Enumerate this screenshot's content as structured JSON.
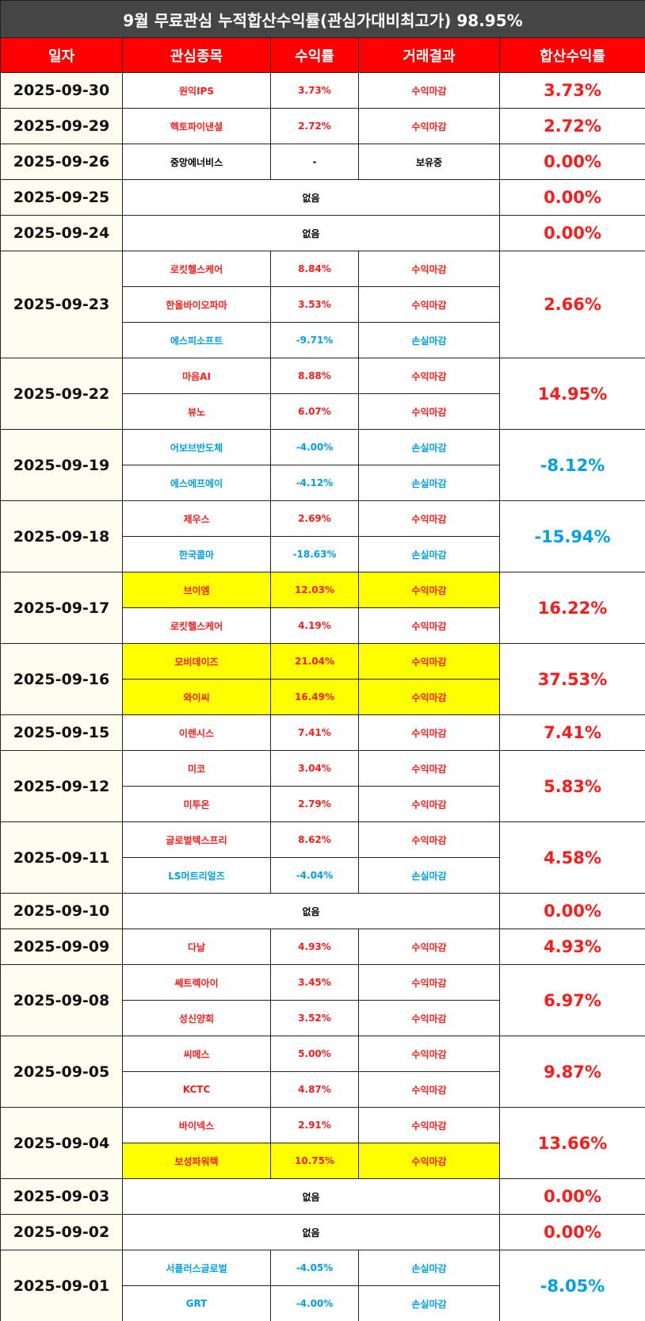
{
  "title": "9월 무료관심 누적합산수익률(관심가대비최고가) 98.95%",
  "header": [
    "일자",
    "관심종목",
    "수익률",
    "거래결과",
    "합산수익률"
  ],
  "rows": [
    {
      "date": "2025-09-30",
      "total": "3.73%",
      "total_color": "#ff1a1a",
      "items": [
        {
          "name": "원익IPS",
          "rate": "3.73%",
          "result": "수익마감",
          "color": "#ff1a1a"
        }
      ]
    },
    {
      "date": "2025-09-29",
      "total": "2.72%",
      "total_color": "#ff1a1a",
      "items": [
        {
          "name": "헥토파이낸셜",
          "rate": "2.72%",
          "result": "수익마감",
          "color": "#ff1a1a"
        }
      ]
    },
    {
      "date": "2025-09-26",
      "total": "0.00%",
      "total_color": "#ff1a1a",
      "items": [
        {
          "name": "중앙에너비스",
          "rate": "-",
          "result": "보유중",
          "color": "#000000"
        }
      ]
    },
    {
      "date": "2025-09-25",
      "total": "0.00%",
      "total_color": "#ff1a1a",
      "items": [
        {
          "name": "없음",
          "color": "#000000"
        }
      ]
    },
    {
      "date": "2025-09-24",
      "total": "0.00%",
      "total_color": "#ff1a1a",
      "items": [
        {
          "name": "없음",
          "color": "#000000"
        }
      ]
    },
    {
      "date": "2025-09-23",
      "total": "2.66%",
      "total_color": "#ff1a1a",
      "items": [
        {
          "name": "로킷헬스케어",
          "rate": "8.84%",
          "result": "수익마감",
          "color": "#ff1a1a"
        },
        {
          "name": "한올바이오파마",
          "rate": "3.53%",
          "result": "수익마감",
          "color": "#ff1a1a"
        },
        {
          "name": "에스피소프트",
          "rate": "-9.71%",
          "result": "손실마감",
          "color": "#00a0e9"
        }
      ]
    },
    {
      "date": "2025-09-22",
      "total": "14.95%",
      "total_color": "#ff1a1a",
      "items": [
        {
          "name": "마음AI",
          "rate": "8.88%",
          "result": "수익마감",
          "color": "#ff1a1a"
        },
        {
          "name": "뷰노",
          "rate": "6.07%",
          "result": "수익마감",
          "color": "#ff1a1a"
        }
      ]
    },
    {
      "date": "2025-09-19",
      "total": "-8.12%",
      "total_color": "#00a0e9",
      "items": [
        {
          "name": "어보브반도체",
          "rate": "-4.00%",
          "result": "손실마감",
          "color": "#00a0e9"
        },
        {
          "name": "에스에프에이",
          "rate": "-4.12%",
          "result": "손실마감",
          "color": "#00a0e9"
        }
      ]
    },
    {
      "date": "2025-09-18",
      "total": "-15.94%",
      "total_color": "#00a0e9",
      "items": [
        {
          "name": "제우스",
          "rate": "2.69%",
          "result": "수익마감",
          "color": "#ff1a1a"
        },
        {
          "name": "한국콜마",
          "rate": "-18.63%",
          "result": "손실마감",
          "color": "#00a0e9"
        }
      ]
    },
    {
      "date": "2025-09-17",
      "total": "16.22%",
      "total_color": "#ff1a1a",
      "items": [
        {
          "name": "브이엠",
          "rate": "12.03%",
          "result": "수익마감",
          "color": "#ff1a1a",
          "highlight": "#ffff00"
        },
        {
          "name": "로킷헬스케어",
          "rate": "4.19%",
          "result": "수익마감",
          "color": "#ff1a1a"
        }
      ]
    },
    {
      "date": "2025-09-16",
      "total": "37.53%",
      "total_color": "#ff1a1a",
      "items": [
        {
          "name": "모비데이즈",
          "rate": "21.04%",
          "result": "수익마감",
          "color": "#ff1a1a",
          "highlight": "#ffff00"
        },
        {
          "name": "와이씨",
          "rate": "16.49%",
          "result": "수익마감",
          "color": "#ff1a1a",
          "highlight": "#ffff00"
        }
      ]
    },
    {
      "date": "2025-09-15",
      "total": "7.41%",
      "total_color": "#ff1a1a",
      "items": [
        {
          "name": "이렌시스",
          "rate": "7.41%",
          "result": "수익마감",
          "color": "#ff1a1a"
        }
      ]
    },
    {
      "date": "2025-09-12",
      "total": "5.83%",
      "total_color": "#ff1a1a",
      "items": [
        {
          "name": "미코",
          "rate": "3.04%",
          "result": "수익마감",
          "color": "#ff1a1a"
        },
        {
          "name": "미투온",
          "rate": "2.79%",
          "result": "수익마감",
          "color": "#ff1a1a"
        }
      ]
    },
    {
      "date": "2025-09-11",
      "total": "4.58%",
      "total_color": "#ff1a1a",
      "items": [
        {
          "name": "글로벌텍스프리",
          "rate": "8.62%",
          "result": "수익마감",
          "color": "#ff1a1a"
        },
        {
          "name": "LS머트리얼즈",
          "rate": "-4.04%",
          "result": "손실마감",
          "color": "#00a0e9"
        }
      ]
    },
    {
      "date": "2025-09-10",
      "total": "0.00%",
      "total_color": "#ff1a1a",
      "items": [
        {
          "name": "없음",
          "color": "#000000"
        }
      ]
    },
    {
      "date": "2025-09-09",
      "total": "4.93%",
      "total_color": "#ff1a1a",
      "items": [
        {
          "name": "다날",
          "rate": "4.93%",
          "result": "수익마감",
          "color": "#ff1a1a"
        }
      ]
    },
    {
      "date": "2025-09-08",
      "total": "6.97%",
      "total_color": "#ff1a1a",
      "items": [
        {
          "name": "쎄트렉아이",
          "rate": "3.45%",
          "result": "수익마감",
          "color": "#ff1a1a"
        },
        {
          "name": "성신양회",
          "rate": "3.52%",
          "result": "수익마감",
          "color": "#ff1a1a"
        }
      ]
    },
    {
      "date": "2025-09-05",
      "total": "9.87%",
      "total_color": "#ff1a1a",
      "items": [
        {
          "name": "씨메스",
          "rate": "5.00%",
          "result": "수익마감",
          "color": "#ff1a1a"
        },
        {
          "name": "KCTC",
          "rate": "4.87%",
          "result": "수익마감",
          "color": "#ff1a1a"
        }
      ]
    },
    {
      "date": "2025-09-04",
      "total": "13.66%",
      "total_color": "#ff1a1a",
      "items": [
        {
          "name": "바이넥스",
          "rate": "2.91%",
          "result": "수익마감",
          "color": "#ff1a1a"
        },
        {
          "name": "보성파워텍",
          "rate": "10.75%",
          "result": "수익마감",
          "color": "#ff1a1a",
          "highlight": "#ffff00"
        }
      ]
    },
    {
      "date": "2025-09-03",
      "total": "0.00%",
      "total_color": "#ff1a1a",
      "items": [
        {
          "name": "없음",
          "color": "#000000"
        }
      ]
    },
    {
      "date": "2025-09-02",
      "total": "0.00%",
      "total_color": "#ff1a1a",
      "items": [
        {
          "name": "없음",
          "color": "#000000"
        }
      ]
    },
    {
      "date": "2025-09-01",
      "total": "-8.05%",
      "total_color": "#00a0e9",
      "items": [
        {
          "name": "서플러스글로벌",
          "rate": "-4.05%",
          "result": "손실마감",
          "color": "#00a0e9"
        },
        {
          "name": "GRT",
          "rate": "-4.00%",
          "result": "손실마감",
          "color": "#00a0e9"
        }
      ]
    }
  ]
}
